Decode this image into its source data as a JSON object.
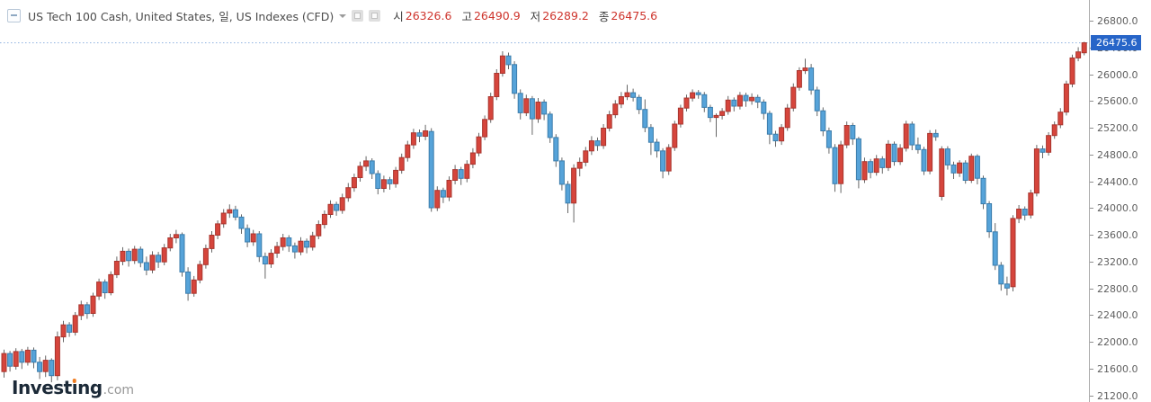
{
  "header": {
    "title": "US Tech 100 Cash, United States, 일, US Indexes (CFD)",
    "value_color": "#ce342c",
    "ohlc": [
      {
        "label": "시",
        "value": "26326.6"
      },
      {
        "label": "고",
        "value": "26490.9"
      },
      {
        "label": "저",
        "value": "26289.2"
      },
      {
        "label": "종",
        "value": "26475.6"
      }
    ]
  },
  "logo": {
    "part1": "Invest",
    "dotless_i": "ı",
    "part2": "ng",
    "suffix": ".com"
  },
  "axis": {
    "ticks": [
      26800,
      26400,
      26000,
      25600,
      25200,
      24800,
      24400,
      24000,
      23600,
      23200,
      22800,
      22400,
      22000,
      21600,
      21200
    ]
  },
  "current_price": {
    "value": 26475.6,
    "label": "26475.6",
    "badge_color": "#2765c8",
    "line_color": "#8fb2e0"
  },
  "chart_data": {
    "type": "candlestick",
    "title": "US Tech 100 Cash",
    "timeframe": "일",
    "legend_position": "none",
    "grid": false,
    "price_axis": {
      "min": 21200,
      "max": 26800,
      "step": 400
    },
    "today": {
      "open": 26326.6,
      "high": 26490.9,
      "low": 26289.2,
      "close": 26475.6
    },
    "colors": {
      "up": "#d6453c",
      "down": "#56a3d9",
      "up_border": "#a8352e",
      "down_border": "#3b7cab",
      "wick": "#666666"
    },
    "candles": [
      [
        21560,
        21890,
        21470,
        21830
      ],
      [
        21830,
        21870,
        21560,
        21640
      ],
      [
        21640,
        21910,
        21590,
        21860
      ],
      [
        21860,
        21900,
        21600,
        21700
      ],
      [
        21700,
        21930,
        21650,
        21880
      ],
      [
        21880,
        21920,
        21610,
        21700
      ],
      [
        21700,
        21780,
        21450,
        21560
      ],
      [
        21560,
        21800,
        21480,
        21730
      ],
      [
        21730,
        21760,
        21400,
        21500
      ],
      [
        21500,
        22160,
        21430,
        22080
      ],
      [
        22080,
        22320,
        22000,
        22260
      ],
      [
        22260,
        22300,
        22080,
        22150
      ],
      [
        22150,
        22450,
        22100,
        22400
      ],
      [
        22400,
        22620,
        22330,
        22560
      ],
      [
        22560,
        22600,
        22350,
        22430
      ],
      [
        22430,
        22740,
        22380,
        22690
      ],
      [
        22690,
        22950,
        22630,
        22900
      ],
      [
        22900,
        22940,
        22650,
        22740
      ],
      [
        22740,
        23060,
        22700,
        23010
      ],
      [
        23010,
        23280,
        22960,
        23210
      ],
      [
        23210,
        23420,
        23150,
        23360
      ],
      [
        23360,
        23400,
        23130,
        23220
      ],
      [
        23220,
        23440,
        23170,
        23390
      ],
      [
        23390,
        23430,
        23120,
        23190
      ],
      [
        23190,
        23280,
        23000,
        23080
      ],
      [
        23080,
        23360,
        23030,
        23300
      ],
      [
        23300,
        23350,
        23110,
        23200
      ],
      [
        23200,
        23470,
        23150,
        23410
      ],
      [
        23410,
        23620,
        23360,
        23560
      ],
      [
        23560,
        23680,
        23480,
        23610
      ],
      [
        23610,
        23640,
        22980,
        23050
      ],
      [
        23050,
        23120,
        22620,
        22730
      ],
      [
        22730,
        22990,
        22680,
        22930
      ],
      [
        22930,
        23220,
        22880,
        23160
      ],
      [
        23160,
        23460,
        23100,
        23400
      ],
      [
        23400,
        23660,
        23340,
        23600
      ],
      [
        23600,
        23820,
        23540,
        23770
      ],
      [
        23770,
        23990,
        23710,
        23930
      ],
      [
        23930,
        24060,
        23860,
        23980
      ],
      [
        23980,
        24040,
        23820,
        23870
      ],
      [
        23870,
        23910,
        23620,
        23700
      ],
      [
        23700,
        23760,
        23420,
        23500
      ],
      [
        23500,
        23680,
        23440,
        23620
      ],
      [
        23620,
        23660,
        23200,
        23280
      ],
      [
        23280,
        23340,
        22950,
        23170
      ],
      [
        23170,
        23390,
        23110,
        23330
      ],
      [
        23330,
        23500,
        23260,
        23430
      ],
      [
        23430,
        23620,
        23370,
        23560
      ],
      [
        23560,
        23600,
        23350,
        23440
      ],
      [
        23440,
        23490,
        23250,
        23350
      ],
      [
        23350,
        23570,
        23300,
        23510
      ],
      [
        23510,
        23550,
        23330,
        23420
      ],
      [
        23420,
        23650,
        23370,
        23590
      ],
      [
        23590,
        23820,
        23540,
        23760
      ],
      [
        23760,
        23970,
        23700,
        23910
      ],
      [
        23910,
        24120,
        23860,
        24060
      ],
      [
        24060,
        24100,
        23890,
        23970
      ],
      [
        23970,
        24220,
        23920,
        24160
      ],
      [
        24160,
        24380,
        24100,
        24310
      ],
      [
        24310,
        24520,
        24250,
        24460
      ],
      [
        24460,
        24700,
        24400,
        24630
      ],
      [
        24630,
        24780,
        24560,
        24710
      ],
      [
        24710,
        24750,
        24440,
        24520
      ],
      [
        24520,
        24570,
        24210,
        24300
      ],
      [
        24300,
        24490,
        24240,
        24430
      ],
      [
        24430,
        24470,
        24280,
        24370
      ],
      [
        24370,
        24620,
        24310,
        24570
      ],
      [
        24570,
        24820,
        24520,
        24760
      ],
      [
        24760,
        25010,
        24700,
        24950
      ],
      [
        24950,
        25190,
        24890,
        25130
      ],
      [
        25130,
        25180,
        24990,
        25080
      ],
      [
        25080,
        25250,
        25020,
        25160
      ],
      [
        25150,
        25200,
        23950,
        24010
      ],
      [
        24010,
        24330,
        23960,
        24270
      ],
      [
        24270,
        24310,
        24080,
        24170
      ],
      [
        24170,
        24480,
        24110,
        24420
      ],
      [
        24420,
        24650,
        24360,
        24580
      ],
      [
        24580,
        24620,
        24350,
        24450
      ],
      [
        24450,
        24720,
        24390,
        24660
      ],
      [
        24660,
        24900,
        24600,
        24830
      ],
      [
        24830,
        25130,
        24780,
        25070
      ],
      [
        25070,
        25390,
        25020,
        25330
      ],
      [
        25330,
        25730,
        25280,
        25670
      ],
      [
        25670,
        26080,
        25620,
        26020
      ],
      [
        26020,
        26350,
        25970,
        26280
      ],
      [
        26280,
        26330,
        26080,
        26150
      ],
      [
        26150,
        26200,
        25640,
        25720
      ],
      [
        25720,
        25780,
        25330,
        25430
      ],
      [
        25430,
        25700,
        25380,
        25640
      ],
      [
        25640,
        25680,
        25100,
        25340
      ],
      [
        25340,
        25650,
        25280,
        25590
      ],
      [
        25590,
        25630,
        25320,
        25410
      ],
      [
        25410,
        25450,
        24980,
        25060
      ],
      [
        25060,
        25110,
        24620,
        24710
      ],
      [
        24710,
        24760,
        24270,
        24360
      ],
      [
        24360,
        24410,
        23930,
        24080
      ],
      [
        24080,
        24660,
        23790,
        24600
      ],
      [
        24600,
        24760,
        24480,
        24690
      ],
      [
        24690,
        24920,
        24630,
        24860
      ],
      [
        24860,
        25080,
        24800,
        25010
      ],
      [
        25010,
        25060,
        24860,
        24940
      ],
      [
        24940,
        25260,
        24890,
        25200
      ],
      [
        25200,
        25460,
        25150,
        25400
      ],
      [
        25400,
        25620,
        25350,
        25560
      ],
      [
        25560,
        25740,
        25500,
        25670
      ],
      [
        25670,
        25850,
        25620,
        25730
      ],
      [
        25730,
        25790,
        25600,
        25660
      ],
      [
        25660,
        25700,
        25410,
        25480
      ],
      [
        25480,
        25630,
        25140,
        25210
      ],
      [
        25210,
        25260,
        24800,
        24990
      ],
      [
        24990,
        25040,
        24760,
        24860
      ],
      [
        24860,
        24900,
        24450,
        24560
      ],
      [
        24560,
        24960,
        24500,
        24910
      ],
      [
        24910,
        25310,
        24860,
        25260
      ],
      [
        25260,
        25550,
        25210,
        25500
      ],
      [
        25500,
        25700,
        25450,
        25650
      ],
      [
        25650,
        25780,
        25600,
        25730
      ],
      [
        25730,
        25770,
        25640,
        25700
      ],
      [
        25700,
        25740,
        25440,
        25510
      ],
      [
        25510,
        25550,
        25290,
        25360
      ],
      [
        25360,
        25420,
        25070,
        25390
      ],
      [
        25390,
        25500,
        25330,
        25450
      ],
      [
        25450,
        25680,
        25400,
        25620
      ],
      [
        25620,
        25660,
        25450,
        25530
      ],
      [
        25530,
        25740,
        25480,
        25690
      ],
      [
        25690,
        25730,
        25520,
        25610
      ],
      [
        25610,
        25720,
        25550,
        25660
      ],
      [
        25660,
        25700,
        25500,
        25590
      ],
      [
        25590,
        25630,
        25330,
        25420
      ],
      [
        25420,
        25460,
        24960,
        25110
      ],
      [
        25110,
        25160,
        24920,
        25010
      ],
      [
        25010,
        25260,
        24950,
        25210
      ],
      [
        25210,
        25560,
        25160,
        25500
      ],
      [
        25500,
        25870,
        25450,
        25810
      ],
      [
        25810,
        26110,
        25760,
        26060
      ],
      [
        26060,
        26240,
        26010,
        26100
      ],
      [
        26100,
        26160,
        25700,
        25770
      ],
      [
        25770,
        25820,
        25380,
        25460
      ],
      [
        25460,
        25510,
        25080,
        25160
      ],
      [
        25160,
        25210,
        24820,
        24910
      ],
      [
        24910,
        24960,
        24250,
        24370
      ],
      [
        24370,
        25010,
        24230,
        24950
      ],
      [
        24950,
        25300,
        24900,
        25240
      ],
      [
        25240,
        25280,
        24950,
        25040
      ],
      [
        25040,
        25070,
        24300,
        24430
      ],
      [
        24430,
        24760,
        24380,
        24700
      ],
      [
        24700,
        24740,
        24450,
        24540
      ],
      [
        24540,
        24800,
        24490,
        24740
      ],
      [
        24740,
        24780,
        24520,
        24610
      ],
      [
        24610,
        25020,
        24560,
        24960
      ],
      [
        24960,
        25000,
        24640,
        24700
      ],
      [
        24700,
        24960,
        24650,
        24900
      ],
      [
        24900,
        25310,
        24850,
        25260
      ],
      [
        25260,
        25300,
        24870,
        24950
      ],
      [
        24950,
        25060,
        24820,
        24880
      ],
      [
        24880,
        24920,
        24500,
        24560
      ],
      [
        24560,
        25170,
        24510,
        25120
      ],
      [
        25120,
        25180,
        25010,
        25070
      ],
      [
        24180,
        24930,
        24120,
        24890
      ],
      [
        24890,
        24930,
        24580,
        24650
      ],
      [
        24650,
        24700,
        24440,
        24530
      ],
      [
        24530,
        24720,
        24470,
        24680
      ],
      [
        24680,
        24720,
        24370,
        24420
      ],
      [
        24420,
        24820,
        24380,
        24780
      ],
      [
        24780,
        24810,
        24360,
        24450
      ],
      [
        24450,
        24490,
        23990,
        24070
      ],
      [
        24070,
        24110,
        23560,
        23650
      ],
      [
        23650,
        23780,
        23080,
        23150
      ],
      [
        23150,
        23200,
        22770,
        22870
      ],
      [
        22870,
        22980,
        22700,
        22810
      ],
      [
        22830,
        23900,
        22760,
        23850
      ],
      [
        23850,
        24050,
        23780,
        23990
      ],
      [
        23990,
        24030,
        23820,
        23900
      ],
      [
        23900,
        24280,
        23850,
        24230
      ],
      [
        24230,
        24950,
        24180,
        24890
      ],
      [
        24890,
        24940,
        24750,
        24840
      ],
      [
        24840,
        25140,
        24790,
        25090
      ],
      [
        25090,
        25300,
        25040,
        25250
      ],
      [
        25250,
        25500,
        25200,
        25440
      ],
      [
        25440,
        25910,
        25390,
        25860
      ],
      [
        25860,
        26300,
        25810,
        26250
      ],
      [
        26250,
        26410,
        26200,
        26340
      ],
      [
        26326.6,
        26490.9,
        26289.2,
        26475.6
      ]
    ]
  }
}
